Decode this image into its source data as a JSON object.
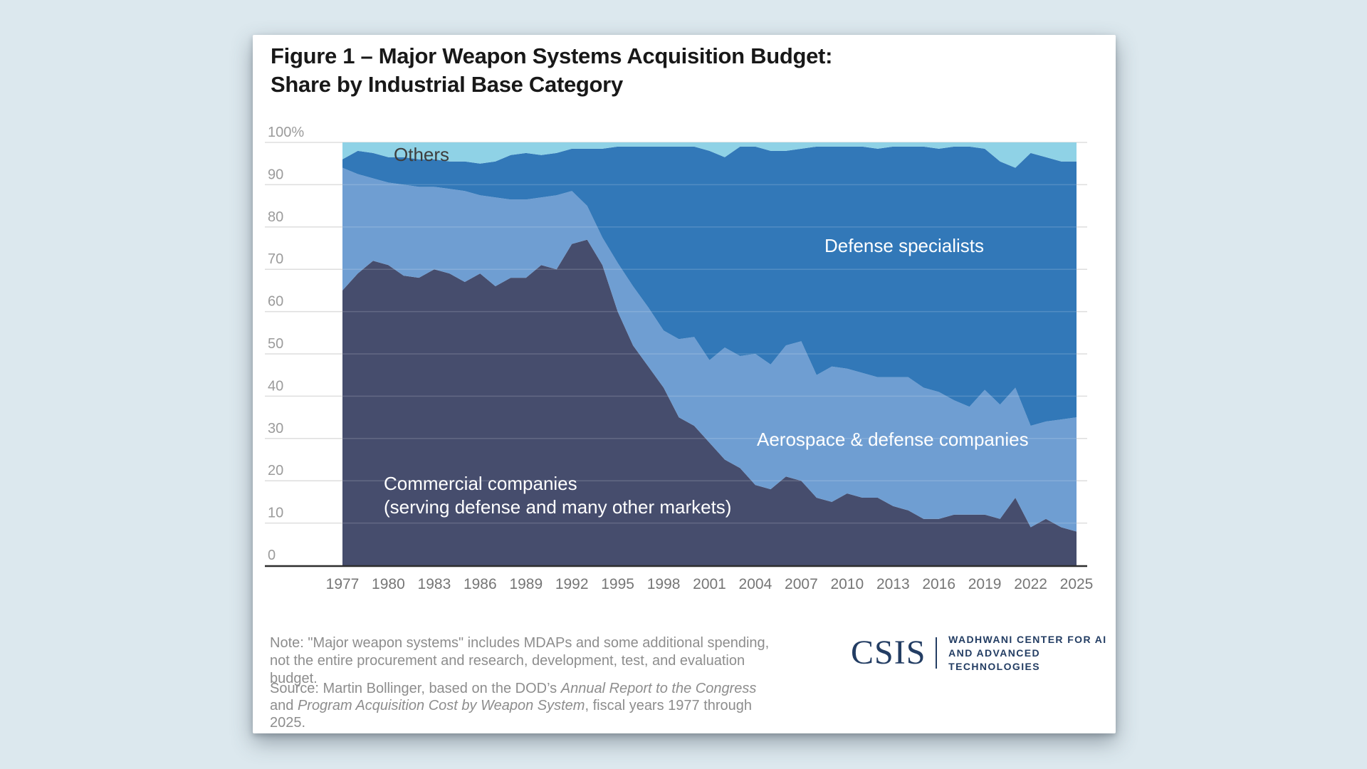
{
  "figure": {
    "title_line1": "Figure 1 – Major Weapon Systems Acquisition Budget:",
    "title_line2": "Share by Industrial Base Category"
  },
  "chart_data": {
    "type": "area",
    "stacked": true,
    "title": "Figure 1 – Major Weapon Systems Acquisition Budget: Share by Industrial Base Category",
    "xlabel": "",
    "ylabel": "",
    "ylim": [
      0,
      100
    ],
    "grid": true,
    "legend_position": "in-plot-labels",
    "x": [
      1977,
      1978,
      1979,
      1980,
      1981,
      1982,
      1983,
      1984,
      1985,
      1986,
      1987,
      1988,
      1989,
      1990,
      1991,
      1992,
      1993,
      1994,
      1995,
      1996,
      1997,
      1998,
      1999,
      2000,
      2001,
      2002,
      2003,
      2004,
      2005,
      2006,
      2007,
      2008,
      2009,
      2010,
      2011,
      2012,
      2013,
      2014,
      2015,
      2016,
      2017,
      2018,
      2019,
      2020,
      2021,
      2022,
      2023,
      2024,
      2025
    ],
    "x_tick_labels": [
      "1977",
      "1980",
      "1983",
      "1986",
      "1989",
      "1992",
      "1995",
      "1998",
      "2001",
      "2004",
      "2007",
      "2010",
      "2013",
      "2016",
      "2019",
      "2022",
      "2025"
    ],
    "y_ticks": [
      0,
      10,
      20,
      30,
      40,
      50,
      60,
      70,
      80,
      90,
      100
    ],
    "y_tick_labels": [
      "0",
      "10",
      "20",
      "30",
      "40",
      "50",
      "60",
      "70",
      "80",
      "90",
      "100%"
    ],
    "series": [
      {
        "name": "Commercial companies\n(serving defense and many other markets)",
        "color": "#464d6d",
        "values": [
          65,
          69,
          72,
          71,
          68.5,
          68,
          70,
          69,
          67,
          69,
          66,
          68,
          68,
          71,
          70,
          76,
          77,
          71,
          60,
          52,
          47,
          42,
          35,
          33,
          29,
          25,
          23,
          19,
          18,
          21,
          20,
          16,
          15,
          17,
          16,
          16,
          14,
          13,
          11,
          11,
          12,
          12,
          12,
          11,
          16,
          9,
          11,
          9,
          8
        ]
      },
      {
        "name": "Aerospace & defense companies",
        "color": "#6f9ed2",
        "values": [
          29,
          23.5,
          19.5,
          19.5,
          21.5,
          21.5,
          19.5,
          20,
          21.5,
          18.5,
          21,
          18.5,
          18.5,
          16,
          17.5,
          12.5,
          8,
          6.5,
          11.5,
          14,
          14,
          13.5,
          18.5,
          21,
          19.5,
          26.5,
          26.5,
          31,
          29.5,
          31,
          33,
          29,
          32,
          29.5,
          29.5,
          28.5,
          30.5,
          31.5,
          31,
          30,
          27,
          25.5,
          29.5,
          27,
          26,
          24,
          23,
          25.5,
          27
        ]
      },
      {
        "name": "Defense specialists",
        "color": "#3278b8",
        "values": [
          2,
          5.5,
          6,
          6,
          6.5,
          6.5,
          6.5,
          6.5,
          7,
          7.5,
          8.5,
          10.5,
          11,
          10,
          10,
          10,
          13.5,
          21,
          27.5,
          33,
          38,
          43.5,
          45.5,
          45,
          49.5,
          45,
          49.5,
          49,
          50.5,
          46,
          45.5,
          54,
          52,
          52.5,
          53.5,
          54,
          54.5,
          54.5,
          57,
          57.5,
          60,
          61.5,
          57,
          57.5,
          52,
          64.5,
          62.5,
          61,
          60.5
        ]
      },
      {
        "name": "Others",
        "color": "#8fd2e6",
        "values": [
          4,
          2,
          2.5,
          3.5,
          3.5,
          4,
          4,
          4.5,
          4.5,
          5,
          4.5,
          3,
          2.5,
          3,
          2.5,
          1.5,
          1.5,
          1.5,
          1,
          1,
          1,
          1,
          1,
          1,
          2,
          3.5,
          1,
          1,
          2,
          2,
          1.5,
          1,
          1,
          1,
          1,
          1.5,
          1,
          1,
          1,
          1.5,
          1,
          1,
          1.5,
          4.5,
          6,
          2.5,
          3.5,
          4.5,
          4.5
        ]
      }
    ],
    "colors": {
      "axis_line": "#2e2e2e",
      "gridline": "#dedede",
      "gridline_over_area": "rgba(255,255,255,0.16)",
      "y_tick_text": "#9b9b9b",
      "x_tick_text": "#767676"
    }
  },
  "note": {
    "text": "Note: \"Major weapon systems\" includes MDAPs and some additional spending, not the entire procurement and research, development, test, and evaluation budget."
  },
  "source": {
    "segments": [
      {
        "text": "Source: Martin Bollinger, based on the DOD’s ",
        "italic": false
      },
      {
        "text": "Annual Report to the Congress",
        "italic": true
      },
      {
        "text": " and ",
        "italic": false
      },
      {
        "text": "Program Acquisition Cost by Weapon System",
        "italic": true
      },
      {
        "text": ", fiscal years 1977 through 2025.",
        "italic": false
      }
    ]
  },
  "logo": {
    "wordmark": "CSIS",
    "line1": "WADHWANI CENTER FOR AI",
    "line2": "AND ADVANCED TECHNOLOGIES",
    "color": "#233d63"
  }
}
